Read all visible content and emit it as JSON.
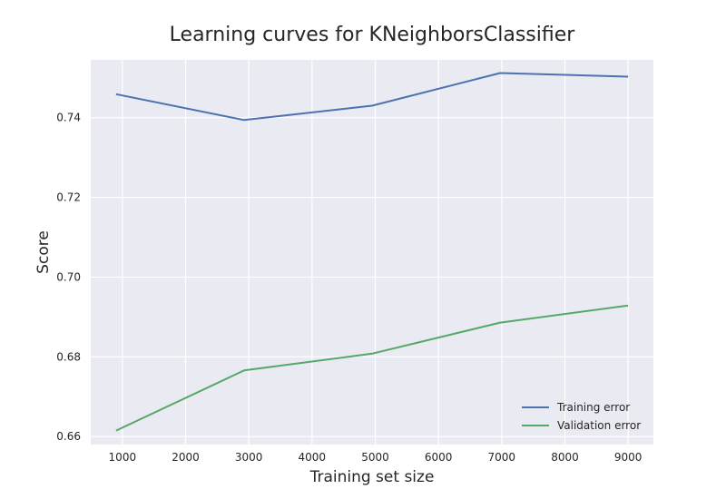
{
  "chart_data": {
    "type": "line",
    "title": "Learning curves for KNeighborsClassifier",
    "xlabel": "Training set size",
    "ylabel": "Score",
    "xlim": [
      500,
      9400
    ],
    "ylim": [
      0.658,
      0.7545
    ],
    "x_ticks": [
      1000,
      2000,
      3000,
      4000,
      5000,
      6000,
      7000,
      8000,
      9000
    ],
    "y_ticks": [
      0.66,
      0.68,
      0.7,
      0.72,
      0.74
    ],
    "x_tick_labels": [
      "1000",
      "2000",
      "3000",
      "4000",
      "5000",
      "6000",
      "7000",
      "8000",
      "9000"
    ],
    "y_tick_labels": [
      "0.66",
      "0.68",
      "0.70",
      "0.72",
      "0.74"
    ],
    "grid": true,
    "legend_position": "bottom-right",
    "background": "#eaeaf2",
    "series": [
      {
        "name": "Training error",
        "color": "#4c72b0",
        "x": [
          900,
          2925,
          4950,
          6975,
          9000
        ],
        "values": [
          0.7459,
          0.7394,
          0.743,
          0.7512,
          0.7503
        ]
      },
      {
        "name": "Validation error",
        "color": "#55a868",
        "x": [
          900,
          2925,
          4950,
          6975,
          9000
        ],
        "values": [
          0.6615,
          0.6766,
          0.6808,
          0.6886,
          0.6929
        ]
      }
    ]
  }
}
